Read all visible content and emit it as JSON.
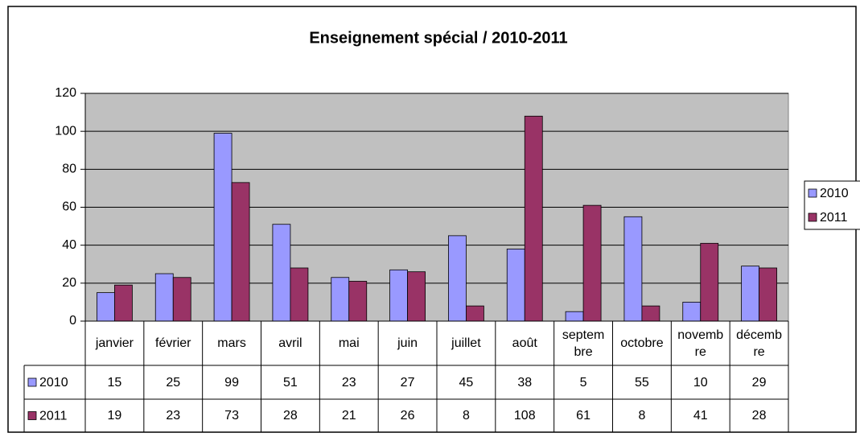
{
  "chart_data": {
    "type": "bar",
    "title": "Enseignement spécial / 2010-2011",
    "categories": [
      "janvier",
      "février",
      "mars",
      "avril",
      "mai",
      "juin",
      "juillet",
      "août",
      "septembre",
      "octobre",
      "novembre",
      "décembre"
    ],
    "series": [
      {
        "name": "2010",
        "color": "#9999ff",
        "values": [
          15,
          25,
          99,
          51,
          23,
          27,
          45,
          38,
          5,
          55,
          10,
          29
        ]
      },
      {
        "name": "2011",
        "color": "#993366",
        "values": [
          19,
          23,
          73,
          28,
          21,
          26,
          8,
          108,
          61,
          8,
          41,
          28
        ]
      }
    ],
    "ylim": [
      0,
      120
    ],
    "yticks": [
      0,
      20,
      40,
      60,
      80,
      100,
      120
    ],
    "grid": true,
    "legend": "right",
    "data_table": true
  }
}
